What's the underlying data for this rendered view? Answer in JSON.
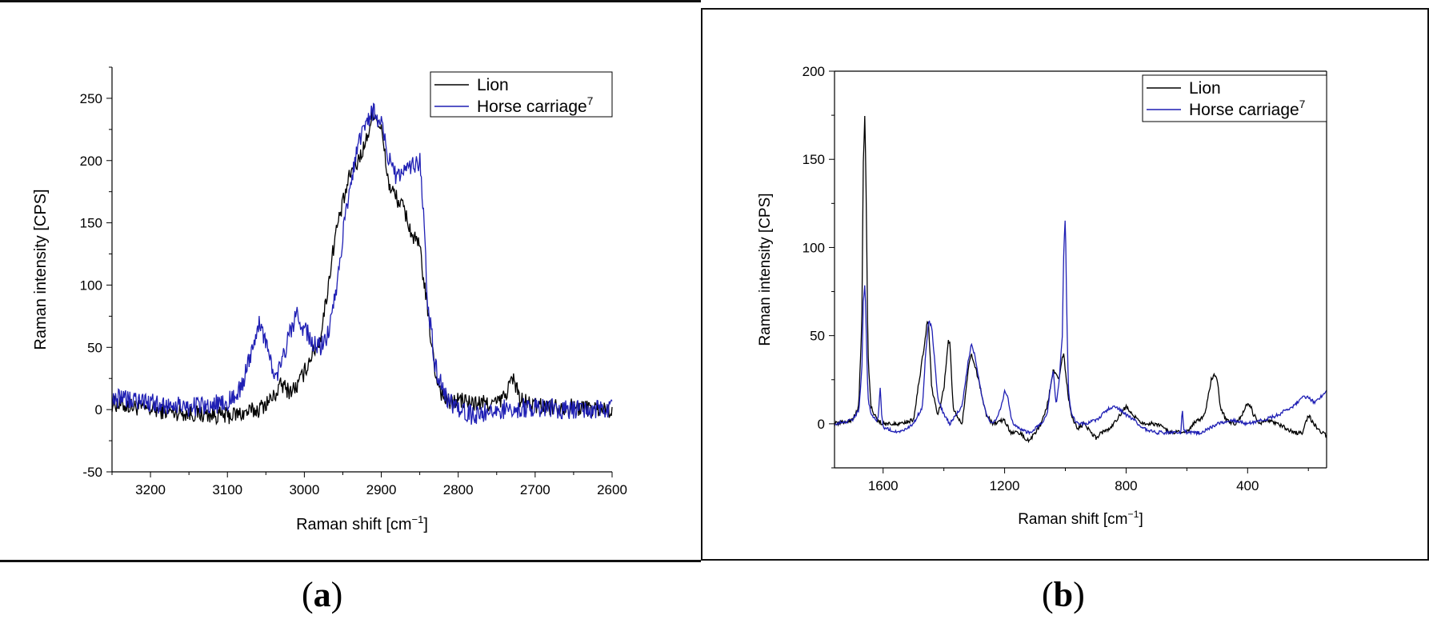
{
  "panels": [
    {
      "label_open": "(",
      "label_letter": "a",
      "label_close": ")"
    },
    {
      "label_open": "(",
      "label_letter": "b",
      "label_close": ")"
    }
  ],
  "chart_data": [
    {
      "type": "line",
      "xlabel": "Raman shift [cm",
      "xlabel_sup": "−1",
      "xlabel_end": "]",
      "ylabel": "Raman intensity [CPS]",
      "xlim": [
        3250,
        2600
      ],
      "ylim": [
        -50,
        275
      ],
      "x_ticks": [
        3200,
        3100,
        3000,
        2900,
        2800,
        2700,
        2600
      ],
      "y_ticks": [
        -50,
        0,
        50,
        100,
        150,
        200,
        250
      ],
      "x_minor_step": 50,
      "y_minor_step": 25,
      "grid": false,
      "legend_position": "top-right",
      "legend": [
        {
          "name": "Lion",
          "color": "#000000"
        },
        {
          "name": "Horse carriage",
          "sup": "7",
          "color": "#1f1fb4"
        }
      ],
      "series": [
        {
          "name": "Lion",
          "color": "#000000",
          "noise": 7,
          "x": [
            3250,
            3200,
            3150,
            3100,
            3080,
            3060,
            3040,
            3030,
            3020,
            3010,
            3000,
            2990,
            2980,
            2970,
            2960,
            2950,
            2940,
            2930,
            2920,
            2910,
            2900,
            2890,
            2880,
            2870,
            2860,
            2850,
            2840,
            2830,
            2820,
            2810,
            2800,
            2780,
            2750,
            2740,
            2730,
            2725,
            2720,
            2710,
            2700,
            2650,
            2600
          ],
          "y": [
            5,
            0,
            -3,
            -5,
            -3,
            0,
            10,
            20,
            15,
            18,
            30,
            45,
            55,
            95,
            140,
            165,
            190,
            200,
            215,
            240,
            225,
            180,
            170,
            160,
            140,
            130,
            80,
            30,
            10,
            5,
            8,
            5,
            5,
            10,
            25,
            20,
            8,
            5,
            3,
            2,
            0
          ]
        },
        {
          "name": "Horse carriage",
          "color": "#1f1fb4",
          "noise": 8,
          "x": [
            3250,
            3200,
            3150,
            3100,
            3080,
            3070,
            3060,
            3050,
            3040,
            3030,
            3020,
            3010,
            3000,
            2990,
            2980,
            2970,
            2960,
            2950,
            2940,
            2930,
            2920,
            2910,
            2900,
            2890,
            2880,
            2870,
            2860,
            2850,
            2845,
            2840,
            2830,
            2820,
            2810,
            2800,
            2780,
            2750,
            2700,
            2650,
            2600
          ],
          "y": [
            10,
            5,
            2,
            5,
            20,
            45,
            70,
            55,
            25,
            35,
            60,
            75,
            65,
            55,
            50,
            60,
            90,
            140,
            180,
            215,
            230,
            240,
            230,
            200,
            185,
            190,
            195,
            200,
            160,
            90,
            35,
            15,
            5,
            0,
            -5,
            0,
            2,
            0,
            0
          ]
        }
      ]
    },
    {
      "type": "line",
      "xlabel": "Raman shift [cm",
      "xlabel_sup": "−1",
      "xlabel_end": "]",
      "ylabel": "Raman intensity [CPS]",
      "xlim": [
        1760,
        140
      ],
      "ylim": [
        -25,
        200
      ],
      "x_ticks": [
        1600,
        1200,
        800,
        400
      ],
      "y_ticks": [
        0,
        50,
        100,
        150,
        200
      ],
      "x_minor_step": 200,
      "y_minor_step": 25,
      "grid": false,
      "legend_position": "top-right",
      "legend": [
        {
          "name": "Lion",
          "color": "#000000"
        },
        {
          "name": "Horse carriage",
          "sup": "7",
          "color": "#1f1fb4"
        }
      ],
      "series": [
        {
          "name": "Lion",
          "color": "#000000",
          "noise": 1.2,
          "x": [
            1760,
            1700,
            1680,
            1670,
            1665,
            1660,
            1655,
            1650,
            1640,
            1620,
            1600,
            1550,
            1500,
            1460,
            1455,
            1450,
            1440,
            1420,
            1400,
            1385,
            1380,
            1370,
            1360,
            1340,
            1320,
            1310,
            1300,
            1280,
            1260,
            1240,
            1200,
            1180,
            1150,
            1120,
            1100,
            1080,
            1060,
            1040,
            1020,
            1010,
            1005,
            1000,
            990,
            980,
            960,
            940,
            900,
            880,
            860,
            840,
            820,
            800,
            780,
            760,
            740,
            700,
            650,
            600,
            580,
            560,
            540,
            530,
            520,
            510,
            500,
            490,
            470,
            440,
            420,
            400,
            390,
            380,
            360,
            340,
            300,
            250,
            220,
            200,
            190,
            170,
            140
          ],
          "y": [
            0,
            2,
            10,
            60,
            150,
            176,
            120,
            40,
            10,
            2,
            0,
            0,
            2,
            50,
            58,
            55,
            20,
            5,
            20,
            48,
            45,
            10,
            5,
            0,
            30,
            40,
            35,
            20,
            5,
            0,
            2,
            -5,
            -5,
            -10,
            -5,
            0,
            10,
            30,
            25,
            38,
            40,
            30,
            15,
            5,
            -3,
            0,
            -8,
            -5,
            -3,
            0,
            5,
            10,
            5,
            2,
            0,
            0,
            -5,
            -5,
            0,
            2,
            5,
            15,
            25,
            28,
            25,
            10,
            2,
            0,
            5,
            12,
            10,
            5,
            0,
            2,
            0,
            -5,
            -5,
            5,
            2,
            -3,
            -7
          ]
        },
        {
          "name": "Horse carriage",
          "color": "#1f1fb4",
          "noise": 1.0,
          "x": [
            1760,
            1700,
            1680,
            1670,
            1665,
            1660,
            1655,
            1650,
            1640,
            1620,
            1615,
            1610,
            1605,
            1600,
            1550,
            1500,
            1470,
            1460,
            1450,
            1440,
            1420,
            1400,
            1380,
            1360,
            1340,
            1320,
            1310,
            1300,
            1290,
            1280,
            1260,
            1240,
            1220,
            1200,
            1190,
            1180,
            1170,
            1150,
            1120,
            1100,
            1080,
            1060,
            1050,
            1040,
            1030,
            1020,
            1010,
            1005,
            1000,
            995,
            990,
            980,
            960,
            940,
            900,
            880,
            860,
            840,
            820,
            800,
            780,
            760,
            740,
            700,
            650,
            620,
            615,
            610,
            600,
            550,
            500,
            450,
            400,
            350,
            300,
            250,
            220,
            200,
            180,
            160,
            140
          ],
          "y": [
            0,
            2,
            8,
            30,
            70,
            80,
            50,
            15,
            5,
            2,
            5,
            22,
            5,
            -2,
            -5,
            0,
            10,
            40,
            58,
            55,
            15,
            5,
            0,
            5,
            10,
            35,
            45,
            40,
            30,
            20,
            5,
            0,
            5,
            18,
            15,
            5,
            0,
            -3,
            -5,
            -3,
            0,
            5,
            20,
            30,
            10,
            25,
            50,
            100,
            118,
            60,
            20,
            5,
            0,
            0,
            2,
            5,
            8,
            10,
            8,
            5,
            3,
            0,
            -3,
            -5,
            -5,
            -5,
            8,
            -3,
            -5,
            -5,
            0,
            2,
            0,
            2,
            5,
            10,
            15,
            15,
            12,
            15,
            18
          ]
        }
      ]
    }
  ]
}
